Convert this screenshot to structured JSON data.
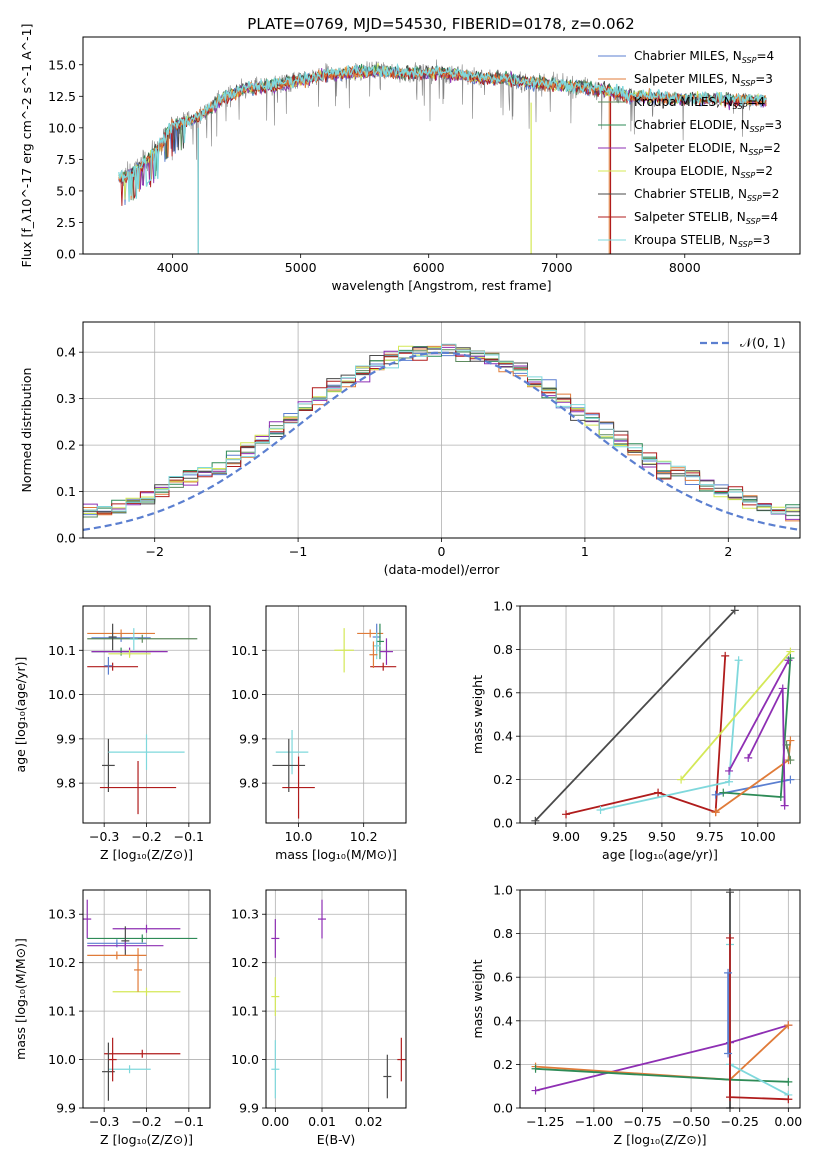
{
  "series_styles": [
    {
      "name": "Chabrier MILES",
      "nssp": "4",
      "color": "#5b7fd0"
    },
    {
      "name": "Salpeter MILES",
      "nssp": "3",
      "color": "#e07b39"
    },
    {
      "name": "Kroupa MILES",
      "nssp": "4",
      "color": "#5e8a5e"
    },
    {
      "name": "Chabrier ELODIE",
      "nssp": "3",
      "color": "#2e8b57"
    },
    {
      "name": "Salpeter ELODIE",
      "nssp": "2",
      "color": "#8e2fb3"
    },
    {
      "name": "Kroupa ELODIE",
      "nssp": "2",
      "color": "#d4e857"
    },
    {
      "name": "Chabrier STELIB",
      "nssp": "2",
      "color": "#4a4a4a"
    },
    {
      "name": "Salpeter STELIB",
      "nssp": "4",
      "color": "#b01c1c"
    },
    {
      "name": "Kroupa STELIB",
      "nssp": "3",
      "color": "#7fd8dc"
    }
  ],
  "chart_data": [
    {
      "id": "spectrum",
      "type": "line",
      "title": "PLATE=0769, MJD=54530, FIBERID=0178, z=0.062",
      "xlabel": "wavelength [Angstrom, rest frame]",
      "ylabel": "Flux [f_λ10^-17 erg cm^-2 s^-1 A^-1]",
      "xlim": [
        3300,
        8900
      ],
      "ylim": [
        0,
        17.2
      ],
      "xticks": [
        4000,
        5000,
        6000,
        7000,
        8000
      ],
      "yticks": [
        0.0,
        2.5,
        5.0,
        7.5,
        10.0,
        12.5,
        15.0
      ],
      "ytick_labels": [
        "0.0",
        "2.5",
        "5.0",
        "7.5",
        "10.0",
        "12.5",
        "15.0"
      ],
      "continuum_x": [
        3580,
        3700,
        3900,
        4000,
        4200,
        4400,
        4600,
        4800,
        5000,
        5200,
        5400,
        5600,
        5800,
        6000,
        6200,
        6400,
        6600,
        6800,
        7000,
        7200,
        7400,
        7600,
        7800,
        8000,
        8200,
        8400,
        8600
      ],
      "continuum_y": [
        6.0,
        6.5,
        8.5,
        10.2,
        10.8,
        12.4,
        13.2,
        13.4,
        13.8,
        14.2,
        14.4,
        14.5,
        14.3,
        14.4,
        14.3,
        13.9,
        13.9,
        13.6,
        13.4,
        13.2,
        12.9,
        12.5,
        12.4,
        12.3,
        12.3,
        12.2,
        12.2
      ],
      "grid": false,
      "legend_position": "upper right"
    },
    {
      "id": "residuals",
      "type": "histogram",
      "xlabel": "(data-model)/error",
      "ylabel": "Normed distribution",
      "xlim": [
        -2.5,
        2.5
      ],
      "ylim": [
        0,
        0.465
      ],
      "xticks": [
        -2,
        -1,
        0,
        1,
        2
      ],
      "xtick_labels": [
        "−2",
        "−1",
        "0",
        "1",
        "2"
      ],
      "yticks": [
        0.0,
        0.1,
        0.2,
        0.3,
        0.4
      ],
      "ytick_labels": [
        "0.0",
        "0.1",
        "0.2",
        "0.3",
        "0.4"
      ],
      "bin_width": 0.1,
      "normal_label": "𝒩(0, 1)",
      "grid": true,
      "legend_position": "upper right"
    },
    {
      "id": "age_vs_z",
      "type": "scatter",
      "xlabel": "Z [log₁₀(Z/Z⊙)]",
      "ylabel": "age  [log₁₀(age/yr)]",
      "xlim": [
        -0.35,
        -0.05
      ],
      "ylim": [
        9.71,
        10.2
      ],
      "xticks": [
        -0.3,
        -0.2,
        -0.1
      ],
      "xtick_labels": [
        "−0.3",
        "−0.2",
        "−0.1"
      ],
      "yticks": [
        9.8,
        9.9,
        10.0,
        10.1
      ],
      "ytick_labels": [
        "9.8",
        "9.9",
        "10.0",
        "10.1"
      ],
      "points": [
        {
          "s": 0,
          "x": -0.26,
          "y": 10.128,
          "xerr": 0.07,
          "yerr": 0.0
        },
        {
          "s": 1,
          "x": -0.26,
          "y": 10.138,
          "xerr": 0.08,
          "yerr": 0.0
        },
        {
          "s": 2,
          "x": -0.21,
          "y": 10.126,
          "xerr": 0.13,
          "yerr": 0.0
        },
        {
          "s": 3,
          "x": -0.26,
          "y": 10.097,
          "xerr": 0.07,
          "yerr": 0.0
        },
        {
          "s": 4,
          "x": -0.24,
          "y": 10.097,
          "xerr": 0.09,
          "yerr": 0.0
        },
        {
          "s": 5,
          "x": -0.24,
          "y": 10.092,
          "xerr": 0.05,
          "yerr": 0.0
        },
        {
          "s": 6,
          "x": -0.28,
          "y": 10.13,
          "xerr": 0.0,
          "yerr": 0.03
        },
        {
          "s": 7,
          "x": -0.28,
          "y": 10.063,
          "xerr": 0.06,
          "yerr": 0.0
        },
        {
          "s": 8,
          "x": -0.23,
          "y": 10.125,
          "xerr": 0.0,
          "yerr": 0.025
        },
        {
          "s": 0,
          "x": -0.29,
          "y": 10.065,
          "xerr": 0.0,
          "yerr": 0.02
        },
        {
          "s": 6,
          "x": -0.29,
          "y": 9.84,
          "xerr": 0.015,
          "yerr": 0.06
        },
        {
          "s": 8,
          "x": -0.2,
          "y": 9.87,
          "xerr": 0.09,
          "yerr": 0.04
        },
        {
          "s": 7,
          "x": -0.22,
          "y": 9.79,
          "xerr": 0.09,
          "yerr": 0.06
        }
      ]
    },
    {
      "id": "age_vs_mass",
      "type": "scatter",
      "xlabel": "mass [log₁₀(M/M⊙)]",
      "ylabel": "",
      "xlim": [
        9.9,
        10.33
      ],
      "ylim": [
        9.71,
        10.2
      ],
      "xticks": [
        10.0,
        10.2
      ],
      "xtick_labels": [
        "10.0",
        "10.2"
      ],
      "yticks": [
        9.8,
        9.9,
        10.0,
        10.1
      ],
      "ytick_labels": [
        "9.8",
        "9.9",
        "10.0",
        "10.1"
      ],
      "points": [
        {
          "s": 1,
          "x": 10.22,
          "y": 10.138,
          "xerr": 0.04,
          "yerr": 0.0
        },
        {
          "s": 0,
          "x": 10.24,
          "y": 10.13,
          "xerr": 0.0,
          "yerr": 0.03
        },
        {
          "s": 3,
          "x": 10.25,
          "y": 10.12,
          "xerr": 0.0,
          "yerr": 0.04
        },
        {
          "s": 4,
          "x": 10.27,
          "y": 10.097,
          "xerr": 0.02,
          "yerr": 0.03
        },
        {
          "s": 5,
          "x": 10.14,
          "y": 10.1,
          "xerr": 0.03,
          "yerr": 0.05
        },
        {
          "s": 8,
          "x": 10.24,
          "y": 10.11,
          "xerr": 0.0,
          "yerr": 0.03
        },
        {
          "s": 7,
          "x": 10.26,
          "y": 10.063,
          "xerr": 0.04,
          "yerr": 0.0
        },
        {
          "s": 1,
          "x": 10.23,
          "y": 10.09,
          "xerr": 0.0,
          "yerr": 0.03
        },
        {
          "s": 8,
          "x": 9.98,
          "y": 9.87,
          "xerr": 0.05,
          "yerr": 0.05
        },
        {
          "s": 6,
          "x": 9.97,
          "y": 9.84,
          "xerr": 0.05,
          "yerr": 0.06
        },
        {
          "s": 7,
          "x": 10.0,
          "y": 9.79,
          "xerr": 0.05,
          "yerr": 0.07
        }
      ]
    },
    {
      "id": "mass_weight_vs_age",
      "type": "line",
      "xlabel": "age  [log₁₀(age/yr)]",
      "ylabel": "mass weight",
      "xlim": [
        8.76,
        10.22
      ],
      "ylim": [
        0,
        1.0
      ],
      "xticks": [
        9.0,
        9.25,
        9.5,
        9.75,
        10.0
      ],
      "xtick_labels": [
        "9.00",
        "9.25",
        "9.50",
        "9.75",
        "10.00"
      ],
      "yticks": [
        0.0,
        0.2,
        0.4,
        0.6,
        0.8,
        1.0
      ],
      "ytick_labels": [
        "0.0",
        "0.2",
        "0.4",
        "0.6",
        "0.8",
        "1.0"
      ],
      "series": [
        {
          "s": 6,
          "x": [
            8.84,
            9.88
          ],
          "y": [
            0.01,
            0.98
          ]
        },
        {
          "s": 7,
          "x": [
            9.0,
            9.48,
            9.78,
            9.83
          ],
          "y": [
            0.04,
            0.14,
            0.05,
            0.77
          ]
        },
        {
          "s": 8,
          "x": [
            9.18,
            9.85,
            9.9
          ],
          "y": [
            0.06,
            0.19,
            0.75
          ]
        },
        {
          "s": 5,
          "x": [
            9.6,
            10.17
          ],
          "y": [
            0.2,
            0.79
          ]
        },
        {
          "s": 4,
          "x": [
            9.85,
            10.16
          ],
          "y": [
            0.24,
            0.75
          ]
        },
        {
          "s": 0,
          "x": [
            9.78,
            10.17
          ],
          "y": [
            0.13,
            0.2
          ]
        },
        {
          "s": 3,
          "x": [
            9.82,
            10.12,
            10.17
          ],
          "y": [
            0.14,
            0.12,
            0.76
          ]
        },
        {
          "s": 1,
          "x": [
            9.78,
            10.16,
            10.17
          ],
          "y": [
            0.05,
            0.29,
            0.38
          ]
        },
        {
          "s": 2,
          "x": [
            10.15,
            10.17
          ],
          "y": [
            0.36,
            0.29
          ]
        },
        {
          "s": 4,
          "x": [
            9.95,
            10.13,
            10.14
          ],
          "y": [
            0.3,
            0.62,
            0.08
          ]
        }
      ]
    },
    {
      "id": "mass_vs_z",
      "type": "scatter",
      "xlabel": "Z [log₁₀(Z/Z⊙)]",
      "ylabel": "mass [log₁₀(M/M⊙)]",
      "xlim": [
        -0.35,
        -0.05
      ],
      "ylim": [
        9.9,
        10.35
      ],
      "xticks": [
        -0.3,
        -0.2,
        -0.1
      ],
      "xtick_labels": [
        "−0.3",
        "−0.2",
        "−0.1"
      ],
      "yticks": [
        9.9,
        10.0,
        10.1,
        10.2,
        10.3
      ],
      "ytick_labels": [
        "9.9",
        "10.0",
        "10.1",
        "10.2",
        "10.3"
      ],
      "points": [
        {
          "s": 4,
          "x": -0.34,
          "y": 10.29,
          "xerr": 0.0,
          "yerr": 0.04
        },
        {
          "s": 4,
          "x": -0.2,
          "y": 10.27,
          "xerr": 0.08,
          "yerr": 0.0
        },
        {
          "s": 3,
          "x": -0.21,
          "y": 10.25,
          "xerr": 0.13,
          "yerr": 0.0
        },
        {
          "s": 6,
          "x": -0.25,
          "y": 10.245,
          "xerr": 0.0,
          "yerr": 0.03
        },
        {
          "s": 0,
          "x": -0.27,
          "y": 10.24,
          "xerr": 0.07,
          "yerr": 0.0
        },
        {
          "s": 1,
          "x": -0.27,
          "y": 10.215,
          "xerr": 0.07,
          "yerr": 0.0
        },
        {
          "s": 4,
          "x": -0.25,
          "y": 10.235,
          "xerr": 0.09,
          "yerr": 0.0
        },
        {
          "s": 5,
          "x": -0.2,
          "y": 10.14,
          "xerr": 0.08,
          "yerr": 0.0
        },
        {
          "s": 1,
          "x": -0.22,
          "y": 10.185,
          "xerr": 0.0,
          "yerr": 0.045
        },
        {
          "s": 7,
          "x": -0.21,
          "y": 10.012,
          "xerr": 0.09,
          "yerr": 0.0
        },
        {
          "s": 8,
          "x": -0.24,
          "y": 9.98,
          "xerr": 0.05,
          "yerr": 0.0
        },
        {
          "s": 6,
          "x": -0.29,
          "y": 9.975,
          "xerr": 0.015,
          "yerr": 0.06
        },
        {
          "s": 7,
          "x": -0.28,
          "y": 10.0,
          "xerr": 0.0,
          "yerr": 0.045
        }
      ]
    },
    {
      "id": "mass_vs_ebv",
      "type": "scatter",
      "xlabel": "E(B-V)",
      "ylabel": "",
      "xlim": [
        -0.002,
        0.028
      ],
      "ylim": [
        9.9,
        10.35
      ],
      "xticks": [
        0.0,
        0.01,
        0.02
      ],
      "xtick_labels": [
        "0.00",
        "0.01",
        "0.02"
      ],
      "yticks": [
        9.9,
        10.0,
        10.1,
        10.2,
        10.3
      ],
      "ytick_labels": [
        "9.9",
        "10.0",
        "10.1",
        "10.2",
        "10.3"
      ],
      "points": [
        {
          "s": 4,
          "x": 0.0,
          "y": 10.25,
          "xerr": 0.0,
          "yerr": 0.04
        },
        {
          "s": 5,
          "x": 0.0,
          "y": 10.13,
          "xerr": 0.0,
          "yerr": 0.04
        },
        {
          "s": 8,
          "x": 0.0,
          "y": 9.98,
          "xerr": 0.0,
          "yerr": 0.06
        },
        {
          "s": 4,
          "x": 0.01,
          "y": 10.29,
          "xerr": 0.0,
          "yerr": 0.04
        },
        {
          "s": 6,
          "x": 0.024,
          "y": 9.965,
          "xerr": 0.0,
          "yerr": 0.045
        },
        {
          "s": 7,
          "x": 0.027,
          "y": 10.0,
          "xerr": 0.0,
          "yerr": 0.045
        }
      ]
    },
    {
      "id": "mass_weight_vs_z",
      "type": "line",
      "xlabel": "Z [log₁₀(Z/Z⊙)]",
      "ylabel": "mass weight",
      "xlim": [
        -1.38,
        0.06
      ],
      "ylim": [
        0,
        1.0
      ],
      "xticks": [
        -1.25,
        -1.0,
        -0.75,
        -0.5,
        -0.25,
        0.0
      ],
      "xtick_labels": [
        "−1.25",
        "−1.00",
        "−0.75",
        "−0.50",
        "−0.25",
        "0.00"
      ],
      "yticks": [
        0.0,
        0.2,
        0.4,
        0.6,
        0.8,
        1.0
      ],
      "ytick_labels": [
        "0.0",
        "0.2",
        "0.4",
        "0.6",
        "0.8",
        "1.0"
      ],
      "series": [
        {
          "s": 4,
          "x": [
            -1.3,
            -0.3,
            0.0
          ],
          "y": [
            0.08,
            0.3,
            0.38
          ]
        },
        {
          "s": 1,
          "x": [
            -1.3,
            -0.3,
            0.0
          ],
          "y": [
            0.19,
            0.13,
            0.38
          ]
        },
        {
          "s": 3,
          "x": [
            -1.3,
            -0.3,
            0.0
          ],
          "y": [
            0.18,
            0.13,
            0.12
          ]
        },
        {
          "s": 6,
          "x": [
            -0.3,
            -0.3
          ],
          "y": [
            0.0,
            0.99
          ]
        },
        {
          "s": 8,
          "x": [
            -0.3,
            -0.3,
            0.0
          ],
          "y": [
            0.75,
            0.2,
            0.06
          ]
        },
        {
          "s": 7,
          "x": [
            -0.3,
            -0.3,
            0.0
          ],
          "y": [
            0.78,
            0.05,
            0.04
          ]
        },
        {
          "s": 0,
          "x": [
            -0.31,
            -0.31
          ],
          "y": [
            0.25,
            0.62
          ]
        }
      ]
    }
  ]
}
